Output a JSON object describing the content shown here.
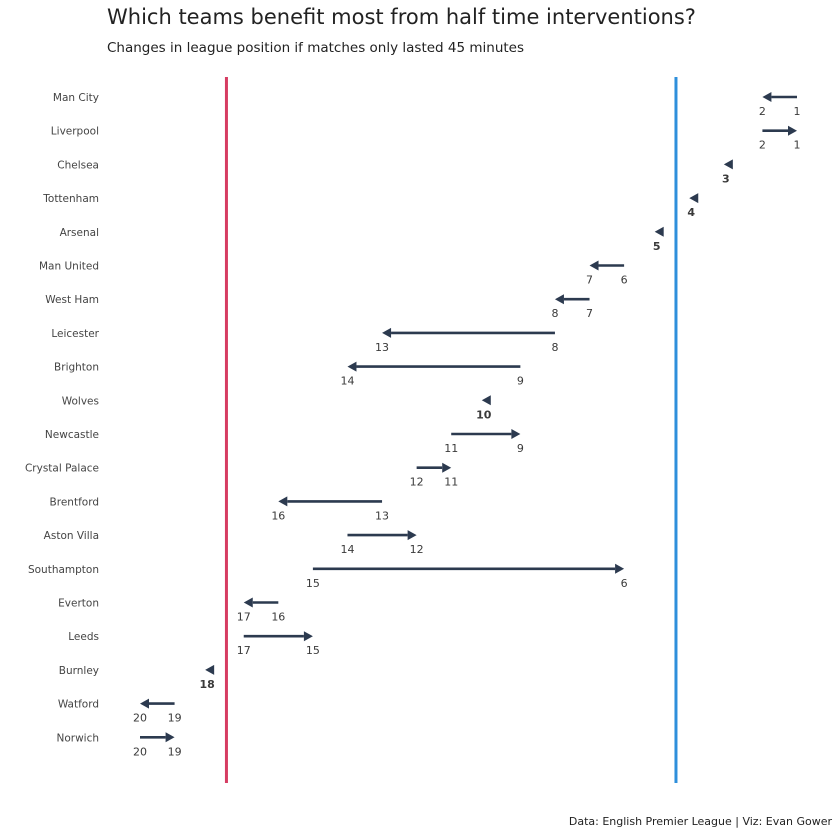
{
  "chart_data": {
    "type": "arrow",
    "title": "Which teams benefit most from half time interventions?",
    "subtitle": "Changes in league position if matches only lasted 45 minutes",
    "caption": "Data: English Premier League | Viz: Evan Gower",
    "xlim": [
      0.5,
      20.5
    ],
    "x_reversed": true,
    "reference_lines": [
      {
        "x": 17.5,
        "color": "#d63c62"
      },
      {
        "x": 4.5,
        "color": "#2e8fdb"
      }
    ],
    "arrow_color": "#2c3a4f",
    "series": [
      {
        "team": "Man City",
        "start": 1,
        "end": 2
      },
      {
        "team": "Liverpool",
        "start": 2,
        "end": 1
      },
      {
        "team": "Chelsea",
        "start": 3,
        "end": 3
      },
      {
        "team": "Tottenham",
        "start": 4,
        "end": 4
      },
      {
        "team": "Arsenal",
        "start": 5,
        "end": 5
      },
      {
        "team": "Man United",
        "start": 6,
        "end": 7
      },
      {
        "team": "West Ham",
        "start": 7,
        "end": 8
      },
      {
        "team": "Leicester",
        "start": 8,
        "end": 13
      },
      {
        "team": "Brighton",
        "start": 9,
        "end": 14
      },
      {
        "team": "Wolves",
        "start": 10,
        "end": 10
      },
      {
        "team": "Newcastle",
        "start": 11,
        "end": 9
      },
      {
        "team": "Crystal Palace",
        "start": 12,
        "end": 11
      },
      {
        "team": "Brentford",
        "start": 13,
        "end": 16
      },
      {
        "team": "Aston Villa",
        "start": 14,
        "end": 12
      },
      {
        "team": "Southampton",
        "start": 15,
        "end": 6
      },
      {
        "team": "Everton",
        "start": 16,
        "end": 17
      },
      {
        "team": "Leeds",
        "start": 17,
        "end": 15
      },
      {
        "team": "Burnley",
        "start": 18,
        "end": 18
      },
      {
        "team": "Watford",
        "start": 19,
        "end": 20
      },
      {
        "team": "Norwich",
        "start": 20,
        "end": 19
      }
    ]
  }
}
